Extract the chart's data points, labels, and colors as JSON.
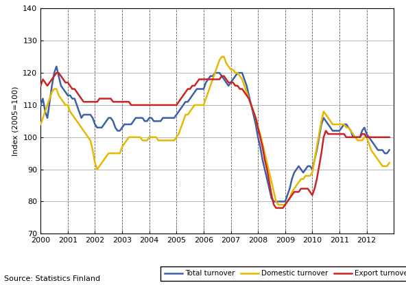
{
  "ylabel": "Index (2005=100)",
  "source_text": "Source: Statistics Finland",
  "ylim": [
    70,
    140
  ],
  "yticks": [
    70,
    80,
    90,
    100,
    110,
    120,
    130,
    140
  ],
  "xtick_years": [
    2000,
    2001,
    2002,
    2003,
    2004,
    2005,
    2006,
    2007,
    2008,
    2009,
    2010,
    2011,
    2012
  ],
  "line_colors": {
    "total": "#3c5fa5",
    "domestic": "#e8b800",
    "export": "#cc2222"
  },
  "line_widths": {
    "total": 1.8,
    "domestic": 1.8,
    "export": 1.8
  },
  "legend_labels": [
    "Total turnover",
    "Domestic turnover",
    "Export turnover"
  ],
  "total_turnover": [
    110,
    112,
    108,
    106,
    111,
    116,
    120,
    122,
    119,
    116,
    115,
    114,
    113,
    113,
    112,
    112,
    110,
    108,
    106,
    107,
    107,
    107,
    107,
    106,
    104,
    103,
    103,
    103,
    104,
    105,
    106,
    106,
    105,
    103,
    102,
    102,
    103,
    104,
    104,
    104,
    104,
    105,
    106,
    106,
    106,
    106,
    105,
    105,
    106,
    106,
    105,
    105,
    105,
    105,
    106,
    106,
    106,
    106,
    106,
    106,
    107,
    108,
    109,
    110,
    111,
    111,
    112,
    113,
    114,
    115,
    115,
    115,
    115,
    117,
    118,
    119,
    119,
    120,
    120,
    120,
    119,
    118,
    117,
    116,
    117,
    118,
    119,
    120,
    120,
    120,
    118,
    116,
    113,
    110,
    107,
    104,
    100,
    97,
    93,
    90,
    87,
    84,
    81,
    80,
    80,
    80,
    80,
    80,
    80,
    82,
    84,
    87,
    89,
    90,
    91,
    90,
    89,
    90,
    91,
    91,
    90,
    93,
    96,
    100,
    104,
    106,
    105,
    104,
    103,
    102,
    102,
    102,
    102,
    103,
    104,
    104,
    103,
    102,
    100,
    100,
    100,
    100,
    102,
    103,
    101,
    100,
    99,
    98,
    97,
    96,
    96,
    96,
    95,
    95,
    96
  ],
  "domestic_turnover": [
    104,
    106,
    108,
    110,
    112,
    114,
    115,
    115,
    113,
    112,
    111,
    110,
    110,
    108,
    107,
    106,
    105,
    104,
    103,
    102,
    101,
    100,
    99,
    96,
    92,
    90,
    91,
    92,
    93,
    94,
    95,
    95,
    95,
    95,
    95,
    95,
    97,
    98,
    99,
    100,
    100,
    100,
    100,
    100,
    100,
    99,
    99,
    99,
    100,
    100,
    100,
    100,
    99,
    99,
    99,
    99,
    99,
    99,
    99,
    99,
    100,
    101,
    103,
    105,
    107,
    107,
    108,
    109,
    110,
    110,
    110,
    110,
    110,
    112,
    114,
    116,
    118,
    120,
    122,
    124,
    125,
    125,
    123,
    122,
    121,
    121,
    120,
    120,
    119,
    118,
    116,
    114,
    112,
    110,
    108,
    106,
    103,
    101,
    98,
    95,
    92,
    89,
    86,
    83,
    80,
    79,
    79,
    79,
    79,
    80,
    81,
    83,
    84,
    85,
    86,
    87,
    87,
    88,
    88,
    88,
    89,
    93,
    97,
    101,
    105,
    108,
    107,
    106,
    105,
    104,
    104,
    104,
    104,
    104,
    104,
    103,
    103,
    102,
    101,
    100,
    99,
    99,
    99,
    100,
    100,
    98,
    96,
    95,
    94,
    93,
    92,
    91,
    91,
    91,
    92
  ],
  "export_turnover": [
    116,
    118,
    117,
    116,
    117,
    118,
    119,
    120,
    120,
    119,
    118,
    117,
    117,
    116,
    115,
    115,
    114,
    113,
    112,
    111,
    111,
    111,
    111,
    111,
    111,
    111,
    112,
    112,
    112,
    112,
    112,
    112,
    111,
    111,
    111,
    111,
    111,
    111,
    111,
    111,
    110,
    110,
    110,
    110,
    110,
    110,
    110,
    110,
    110,
    110,
    110,
    110,
    110,
    110,
    110,
    110,
    110,
    110,
    110,
    110,
    110,
    111,
    112,
    113,
    114,
    115,
    115,
    116,
    116,
    117,
    118,
    118,
    118,
    118,
    118,
    118,
    118,
    118,
    118,
    118,
    119,
    119,
    118,
    117,
    117,
    117,
    116,
    116,
    115,
    115,
    114,
    113,
    112,
    110,
    108,
    106,
    103,
    100,
    97,
    93,
    90,
    86,
    82,
    79,
    78,
    78,
    78,
    78,
    79,
    80,
    81,
    82,
    83,
    83,
    83,
    84,
    84,
    84,
    84,
    83,
    82,
    84,
    87,
    91,
    95,
    100,
    102,
    101,
    101,
    101,
    101,
    101,
    101,
    101,
    101,
    100,
    100,
    100,
    100,
    100,
    100,
    100,
    101,
    101,
    100,
    100,
    100,
    100,
    100,
    100,
    100,
    100,
    100,
    100,
    100
  ]
}
